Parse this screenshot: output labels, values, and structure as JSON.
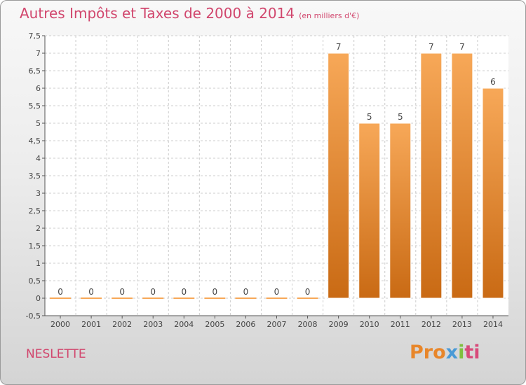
{
  "title": "Autres Impôts et Taxes de 2000 à 2014",
  "subtitle": "(en milliers d'€)",
  "commune": "NESLETTE",
  "logo": {
    "part1": "Pro",
    "part2": "x",
    "part3": "i",
    "part4": "ti"
  },
  "colors": {
    "bar_light": "#f7a858",
    "bar_dark": "#c96a14",
    "title": "#d1466d",
    "grid": "#cccccc"
  },
  "chart_data": {
    "type": "bar",
    "categories": [
      "2000",
      "2001",
      "2002",
      "2003",
      "2004",
      "2005",
      "2006",
      "2007",
      "2008",
      "2009",
      "2010",
      "2011",
      "2012",
      "2013",
      "2014"
    ],
    "values": [
      0,
      0,
      0,
      0,
      0,
      0,
      0,
      0,
      0,
      7,
      5,
      5,
      7,
      7,
      6
    ],
    "data_labels": [
      "0",
      "0",
      "0",
      "0",
      "0",
      "0",
      "0",
      "0",
      "0",
      "7",
      "5",
      "5",
      "7",
      "7",
      "6"
    ],
    "y_ticks": [
      "-0,5",
      "0",
      "0,5",
      "1",
      "1,5",
      "2",
      "2,5",
      "3",
      "3,5",
      "4",
      "4,5",
      "5",
      "5,5",
      "6",
      "6,5",
      "7",
      "7,5"
    ],
    "ylim": [
      -0.5,
      7.5
    ],
    "grid": true
  }
}
